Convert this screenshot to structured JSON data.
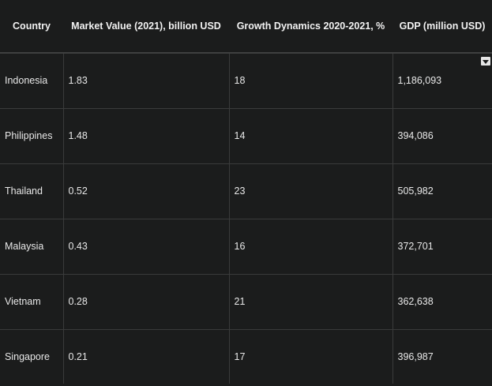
{
  "table": {
    "headers": [
      "Country",
      "Market Value (2021), billion USD",
      "Growth Dynamics 2020-2021, %",
      "GDP (million USD)"
    ],
    "rows": [
      [
        "Indonesia",
        "1.83",
        "18",
        "1,186,093"
      ],
      [
        "Philippines",
        "1.48",
        "14",
        "394,086"
      ],
      [
        "Thailand",
        "0.52",
        "23",
        "505,982"
      ],
      [
        "Malaysia",
        "0.43",
        "16",
        "372,701"
      ],
      [
        "Vietnam",
        "0.28",
        "21",
        "362,638"
      ],
      [
        "Singapore",
        "0.21",
        "17",
        "396,987"
      ]
    ]
  },
  "icons": {
    "dropdown": "chevron-down-icon"
  }
}
